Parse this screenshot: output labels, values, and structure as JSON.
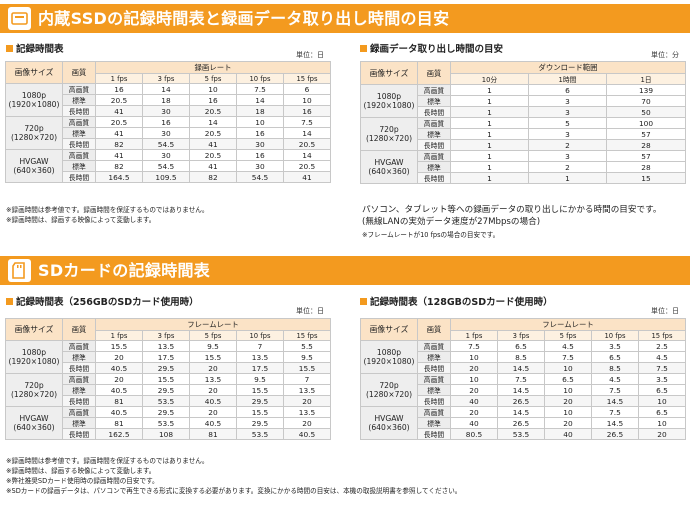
{
  "banner1": {
    "icon": "ssd-icon",
    "title": "内蔵SSDの記録時間表と録画データ取り出し時間の目安"
  },
  "banner2": {
    "icon": "sd-card-icon",
    "title": "SDカードの記録時間表"
  },
  "headers": {
    "size": "画像サイズ",
    "quality": "画質"
  },
  "qualities": [
    "高画質",
    "標準",
    "長時間"
  ],
  "sizes": [
    {
      "main": "1080p",
      "sub": "(1920×1080)"
    },
    {
      "main": "720p",
      "sub": "(1280×720)"
    },
    {
      "main": "HVGAW",
      "sub": "(640×360)"
    }
  ],
  "fps_cols": [
    "1 fps",
    "3 fps",
    "5 fps",
    "10 fps",
    "15 fps"
  ],
  "table1": {
    "title": "記録時間表",
    "unit": "単位：日",
    "group_header": "録画レート",
    "rows": [
      [
        "16",
        "14",
        "10",
        "7.5",
        "6"
      ],
      [
        "20.5",
        "18",
        "16",
        "14",
        "10"
      ],
      [
        "41",
        "30",
        "20.5",
        "18",
        "16"
      ],
      [
        "20.5",
        "16",
        "14",
        "10",
        "7.5"
      ],
      [
        "41",
        "30",
        "20.5",
        "16",
        "14"
      ],
      [
        "82",
        "54.5",
        "41",
        "30",
        "20.5"
      ],
      [
        "41",
        "30",
        "20.5",
        "16",
        "14"
      ],
      [
        "82",
        "54.5",
        "41",
        "30",
        "20.5"
      ],
      [
        "164.5",
        "109.5",
        "82",
        "54.5",
        "41"
      ]
    ],
    "notes": [
      "※録画時間は参考値です。録画時間を保証するものではありません。",
      "※録画時間は、録画する映像によって変動します。"
    ]
  },
  "table2": {
    "title": "録画データ取り出し時間の目安",
    "unit": "単位：分",
    "group_header": "ダウンロード範囲",
    "cols": [
      "10分",
      "1時間",
      "1日"
    ],
    "rows": [
      [
        "1",
        "6",
        "139"
      ],
      [
        "1",
        "3",
        "70"
      ],
      [
        "1",
        "3",
        "50"
      ],
      [
        "1",
        "5",
        "100"
      ],
      [
        "1",
        "3",
        "57"
      ],
      [
        "1",
        "2",
        "28"
      ],
      [
        "1",
        "3",
        "57"
      ],
      [
        "1",
        "2",
        "28"
      ],
      [
        "1",
        "1",
        "15"
      ]
    ],
    "notes": [
      "パソコン、タブレット等への録画データの取り出しにかかる時間の目安です。",
      "(無線LANの実効データ速度が27Mbpsの場合)"
    ],
    "small_note": "※フレームレートが10 fpsの場合の目安です。"
  },
  "table3": {
    "title": "記録時間表（256GBのSDカード使用時）",
    "unit": "単位：日",
    "group_header": "フレームレート",
    "rows": [
      [
        "15.5",
        "13.5",
        "9.5",
        "7",
        "5.5"
      ],
      [
        "20",
        "17.5",
        "15.5",
        "13.5",
        "9.5"
      ],
      [
        "40.5",
        "29.5",
        "20",
        "17.5",
        "15.5"
      ],
      [
        "20",
        "15.5",
        "13.5",
        "9.5",
        "7"
      ],
      [
        "40.5",
        "29.5",
        "20",
        "15.5",
        "13.5"
      ],
      [
        "81",
        "53.5",
        "40.5",
        "29.5",
        "20"
      ],
      [
        "40.5",
        "29.5",
        "20",
        "15.5",
        "13.5"
      ],
      [
        "81",
        "53.5",
        "40.5",
        "29.5",
        "20"
      ],
      [
        "162.5",
        "108",
        "81",
        "53.5",
        "40.5"
      ]
    ]
  },
  "table4": {
    "title": "記録時間表（128GBのSDカード使用時）",
    "unit": "単位：日",
    "group_header": "フレームレート",
    "rows": [
      [
        "7.5",
        "6.5",
        "4.5",
        "3.5",
        "2.5"
      ],
      [
        "10",
        "8.5",
        "7.5",
        "6.5",
        "4.5"
      ],
      [
        "20",
        "14.5",
        "10",
        "8.5",
        "7.5"
      ],
      [
        "10",
        "7.5",
        "6.5",
        "4.5",
        "3.5"
      ],
      [
        "20",
        "14.5",
        "10",
        "7.5",
        "6.5"
      ],
      [
        "40",
        "26.5",
        "20",
        "14.5",
        "10"
      ],
      [
        "20",
        "14.5",
        "10",
        "7.5",
        "6.5"
      ],
      [
        "40",
        "26.5",
        "20",
        "14.5",
        "10"
      ],
      [
        "80.5",
        "53.5",
        "40",
        "26.5",
        "20"
      ]
    ]
  },
  "bottom_notes": [
    "※録画時間は参考値です。録画時間を保証するものではありません。",
    "※録画時間は、録画する映像によって変動します。",
    "※弊社推奨SDカード使用時の録画時間の目安です。",
    "※SDカードの録画データは、パソコンで再生できる形式に変換する必要があります。変換にかかる時間の目安は、本機の取扱説明書を参照してください。"
  ]
}
